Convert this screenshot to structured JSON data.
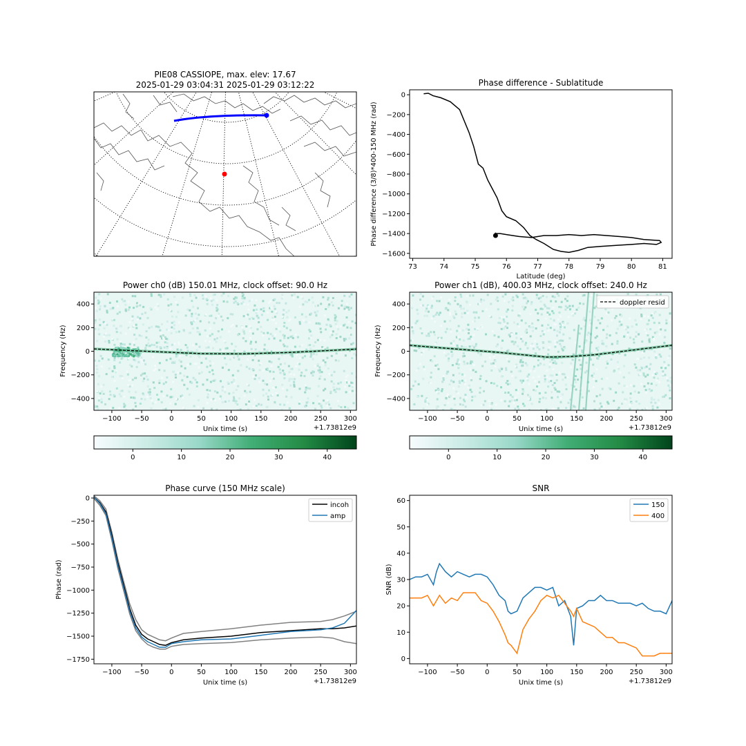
{
  "colors": {
    "track_blue": "#0000ff",
    "station_red": "#ff0000",
    "series_blue": "#1f77b4",
    "series_orange": "#ff7f0e",
    "bound_gray": "#808080",
    "ink": "#000000",
    "spec_light": "#f7fcfd",
    "spec_dark": "#00441b"
  },
  "chart_data": [
    {
      "id": "map",
      "type": "map",
      "title_line1": "PIE08 CASSIOPE, max. elev: 17.67",
      "title_line2": "2025-01-29 03:04:31 2025-01-29 03:12:22",
      "projection": "polar",
      "graticule": "dotted",
      "track": "satellite ground track (blue) ending with a dot",
      "station": "red dot"
    },
    {
      "id": "phase_lat",
      "type": "line",
      "title": "Phase difference - Sublatitude",
      "xlabel": "Latitude (deg)",
      "ylabel": "Phase difference (3/8)*400-150 MHz (rad)",
      "xlim": [
        72.9,
        81.3
      ],
      "ylim": [
        -1650,
        50
      ],
      "xticks": [
        73,
        74,
        75,
        76,
        77,
        78,
        79,
        80,
        81
      ],
      "yticks": [
        0,
        -200,
        -400,
        -600,
        -800,
        -1000,
        -1200,
        -1400,
        -1600
      ],
      "marker": {
        "x": 75.65,
        "y": -1420
      },
      "series": [
        {
          "x": [
            73.35,
            73.5,
            73.65,
            73.9,
            74.2,
            74.5,
            74.8,
            74.95,
            75.1,
            75.25,
            75.4,
            75.55,
            75.7,
            75.85,
            76.0,
            76.3,
            76.55,
            76.75,
            76.95,
            77.2,
            77.5,
            77.75,
            78.0,
            78.3,
            78.6,
            79.0,
            79.5,
            80.0,
            80.4,
            80.8,
            80.95,
            80.9,
            80.4,
            80.0,
            79.6,
            79.2,
            78.8,
            78.4,
            78.0,
            77.6,
            77.2,
            76.8,
            76.4,
            76.0,
            75.8,
            75.65,
            75.65
          ],
          "y": [
            10,
            15,
            -10,
            -30,
            -70,
            -150,
            -380,
            -520,
            -700,
            -740,
            -860,
            -950,
            -1040,
            -1170,
            -1230,
            -1270,
            -1340,
            -1420,
            -1460,
            -1500,
            -1560,
            -1580,
            -1590,
            -1570,
            -1540,
            -1530,
            -1520,
            -1510,
            -1500,
            -1510,
            -1490,
            -1470,
            -1460,
            -1440,
            -1430,
            -1420,
            -1410,
            -1420,
            -1410,
            -1420,
            -1420,
            -1440,
            -1430,
            -1410,
            -1400,
            -1400,
            -1390
          ]
        }
      ]
    },
    {
      "id": "spec0",
      "type": "heatmap",
      "title": "Power ch0 (dB) 150.01 MHz, clock offset: 90.0 Hz",
      "xlabel": "Unix time (s)",
      "ylabel": "Frequency (Hz)",
      "offset_text": "+1.73812e9",
      "xlim": [
        -130,
        310
      ],
      "ylim": [
        -500,
        500
      ],
      "xticks": [
        -100,
        -50,
        0,
        50,
        100,
        150,
        200,
        250,
        300
      ],
      "yticks": [
        400,
        200,
        0,
        -200,
        -400
      ],
      "colorbar": {
        "ticks": [
          0,
          10,
          20,
          30,
          40
        ],
        "range": [
          -8,
          46
        ]
      },
      "doppler": {
        "x": [
          -130,
          -80,
          -20,
          50,
          120,
          200,
          260,
          310
        ],
        "y": [
          20,
          8,
          -5,
          -20,
          -22,
          -10,
          5,
          18
        ]
      }
    },
    {
      "id": "spec1",
      "type": "heatmap",
      "title": "Power ch1 (dB), 400.03 MHz, clock offset: 240.0 Hz",
      "xlabel": "Unix time (s)",
      "ylabel": "Frequency (Hz)",
      "offset_text": "+1.73812e9",
      "xlim": [
        -130,
        310
      ],
      "ylim": [
        -500,
        500
      ],
      "xticks": [
        -100,
        -50,
        0,
        50,
        100,
        150,
        200,
        250,
        300
      ],
      "yticks": [
        400,
        200,
        0,
        -200,
        -400
      ],
      "legend": "doppler resid",
      "colorbar": {
        "ticks": [
          0,
          10,
          20,
          30,
          40
        ],
        "range": [
          -8,
          46
        ]
      },
      "doppler": {
        "x": [
          -130,
          -80,
          -30,
          20,
          60,
          100,
          140,
          180,
          220,
          260,
          310
        ],
        "y": [
          50,
          30,
          10,
          -10,
          -30,
          -50,
          -45,
          -30,
          -5,
          20,
          50
        ]
      }
    },
    {
      "id": "phase_curve",
      "type": "line",
      "title": "Phase curve (150 MHz scale)",
      "xlabel": "Unix time (s)",
      "ylabel": "Phase (rad)",
      "offset_text": "+1.73812e9",
      "xlim": [
        -130,
        310
      ],
      "ylim": [
        -1800,
        30
      ],
      "xticks": [
        -100,
        -50,
        0,
        50,
        100,
        150,
        200,
        250,
        300
      ],
      "yticks": [
        0,
        -250,
        -500,
        -750,
        -1000,
        -1250,
        -1500,
        -1750
      ],
      "legend": [
        "incoh",
        "amp"
      ],
      "x": [
        -130,
        -120,
        -110,
        -100,
        -90,
        -80,
        -70,
        -60,
        -50,
        -40,
        -30,
        -20,
        -10,
        0,
        20,
        50,
        100,
        150,
        200,
        250,
        270,
        290,
        310
      ],
      "series": [
        {
          "name": "incoh",
          "values": [
            10,
            -50,
            -150,
            -400,
            -700,
            -950,
            -1200,
            -1380,
            -1480,
            -1530,
            -1560,
            -1590,
            -1600,
            -1570,
            -1540,
            -1520,
            -1500,
            -1460,
            -1440,
            -1420,
            -1420,
            -1410,
            -1390
          ]
        },
        {
          "name": "amp",
          "values": [
            10,
            -60,
            -170,
            -430,
            -730,
            -980,
            -1230,
            -1410,
            -1510,
            -1560,
            -1590,
            -1620,
            -1620,
            -1580,
            -1560,
            -1540,
            -1530,
            -1490,
            -1450,
            -1430,
            -1410,
            -1360,
            -1220
          ]
        },
        {
          "values": [
            25,
            -30,
            -120,
            -370,
            -660,
            -910,
            -1150,
            -1320,
            -1430,
            -1480,
            -1510,
            -1540,
            -1550,
            -1520,
            -1470,
            -1450,
            -1420,
            -1380,
            -1350,
            -1340,
            -1320,
            -1280,
            -1230
          ]
        },
        {
          "values": [
            -5,
            -80,
            -190,
            -460,
            -760,
            -1010,
            -1260,
            -1440,
            -1530,
            -1590,
            -1620,
            -1640,
            -1640,
            -1610,
            -1590,
            -1580,
            -1570,
            -1540,
            -1520,
            -1510,
            -1520,
            -1560,
            -1580
          ]
        }
      ]
    },
    {
      "id": "snr",
      "type": "line",
      "title": "SNR",
      "xlabel": "Unix time (s)",
      "ylabel": "SNR (dB)",
      "offset_text": "+1.73812e9",
      "xlim": [
        -130,
        310
      ],
      "ylim": [
        -2,
        62
      ],
      "xticks": [
        -100,
        -50,
        0,
        50,
        100,
        150,
        200,
        250,
        300
      ],
      "yticks": [
        0,
        10,
        20,
        30,
        40,
        50,
        60
      ],
      "legend": [
        "150",
        "400"
      ],
      "x": [
        -130,
        -120,
        -110,
        -100,
        -90,
        -85,
        -80,
        -70,
        -60,
        -50,
        -40,
        -30,
        -20,
        -10,
        0,
        10,
        20,
        30,
        35,
        40,
        50,
        60,
        70,
        80,
        90,
        100,
        110,
        120,
        130,
        140,
        145,
        150,
        160,
        170,
        180,
        190,
        200,
        210,
        220,
        230,
        240,
        250,
        260,
        270,
        280,
        290,
        300,
        310
      ],
      "series": [
        {
          "name": "150",
          "values": [
            30,
            31,
            31,
            32,
            28,
            33,
            36,
            33,
            31,
            33,
            32,
            31,
            32,
            32,
            31,
            28,
            24,
            22,
            18,
            17,
            18,
            23,
            25,
            27,
            27,
            26,
            27,
            20,
            22,
            16,
            5,
            19,
            20,
            22,
            22,
            24,
            22,
            22,
            21,
            21,
            21,
            20,
            21,
            19,
            18,
            18,
            17,
            22
          ]
        },
        {
          "name": "400",
          "values": [
            23,
            23,
            23,
            24,
            20,
            22,
            24,
            21,
            23,
            22,
            25,
            25,
            25,
            22,
            21,
            18,
            14,
            9,
            6,
            5,
            2,
            11,
            15,
            18,
            22,
            24,
            23,
            24,
            21,
            18,
            16,
            19,
            14,
            13,
            12,
            10,
            8,
            8,
            6,
            6,
            5,
            4,
            1,
            1,
            1,
            2,
            2,
            2
          ]
        }
      ]
    }
  ]
}
